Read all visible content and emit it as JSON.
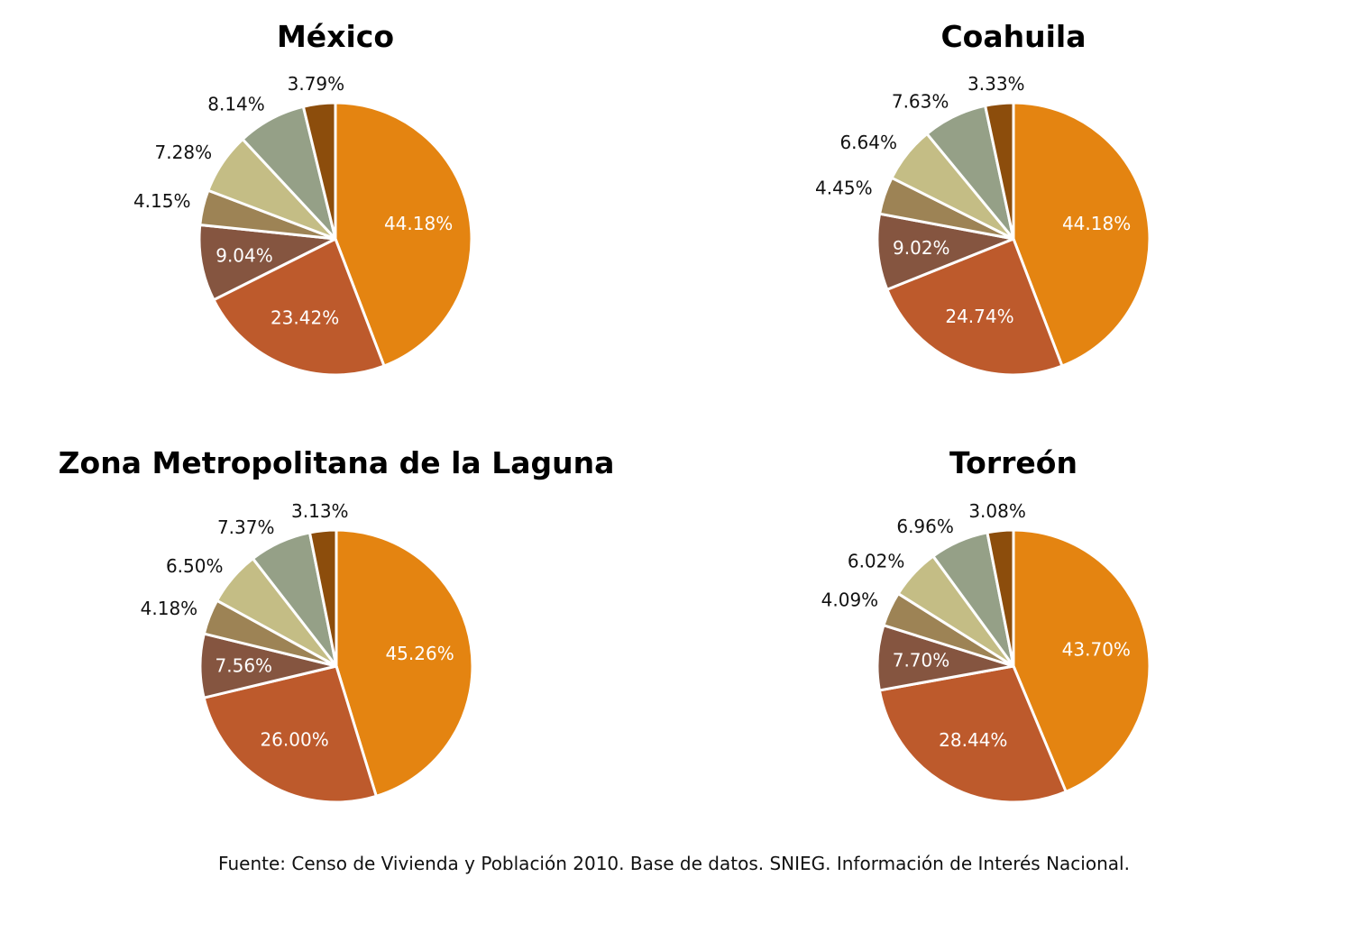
{
  "chart_data": [
    {
      "type": "pie",
      "title": "México",
      "slices": [
        {
          "value": 44.18,
          "label": "44.18%"
        },
        {
          "value": 23.42,
          "label": "23.42%"
        },
        {
          "value": 9.04,
          "label": "9.04%"
        },
        {
          "value": 4.15,
          "label": "4.15%"
        },
        {
          "value": 7.28,
          "label": "7.28%"
        },
        {
          "value": 8.14,
          "label": "8.14%"
        },
        {
          "value": 3.79,
          "label": "3.79%"
        }
      ]
    },
    {
      "type": "pie",
      "title": "Coahuila",
      "slices": [
        {
          "value": 44.18,
          "label": "44.18%"
        },
        {
          "value": 24.74,
          "label": "24.74%"
        },
        {
          "value": 9.02,
          "label": "9.02%"
        },
        {
          "value": 4.45,
          "label": "4.45%"
        },
        {
          "value": 6.64,
          "label": "6.64%"
        },
        {
          "value": 7.63,
          "label": "7.63%"
        },
        {
          "value": 3.33,
          "label": "3.33%"
        }
      ]
    },
    {
      "type": "pie",
      "title": "Zona Metropolitana de la Laguna",
      "slices": [
        {
          "value": 45.26,
          "label": "45.26%"
        },
        {
          "value": 26.0,
          "label": "26.00%"
        },
        {
          "value": 7.56,
          "label": "7.56%"
        },
        {
          "value": 4.18,
          "label": "4.18%"
        },
        {
          "value": 6.5,
          "label": "6.50%"
        },
        {
          "value": 7.37,
          "label": "7.37%"
        },
        {
          "value": 3.13,
          "label": "3.13%"
        }
      ]
    },
    {
      "type": "pie",
      "title": "Torreón",
      "slices": [
        {
          "value": 43.7,
          "label": "43.70%"
        },
        {
          "value": 28.44,
          "label": "28.44%"
        },
        {
          "value": 7.7,
          "label": "7.70%"
        },
        {
          "value": 4.09,
          "label": "4.09%"
        },
        {
          "value": 6.02,
          "label": "6.02%"
        },
        {
          "value": 6.96,
          "label": "6.96%"
        },
        {
          "value": 3.08,
          "label": "3.08%"
        }
      ]
    }
  ],
  "slice_colors": [
    "#e48411",
    "#bd5a2c",
    "#855540",
    "#9d8355",
    "#c4bd85",
    "#95a087",
    "#8c4d0c"
  ],
  "slice_border_color": "#ffffff",
  "source_text": "Fuente: Censo de Vivienda y Población 2010. Base de datos. SNIEG. Información de Interés Nacional."
}
